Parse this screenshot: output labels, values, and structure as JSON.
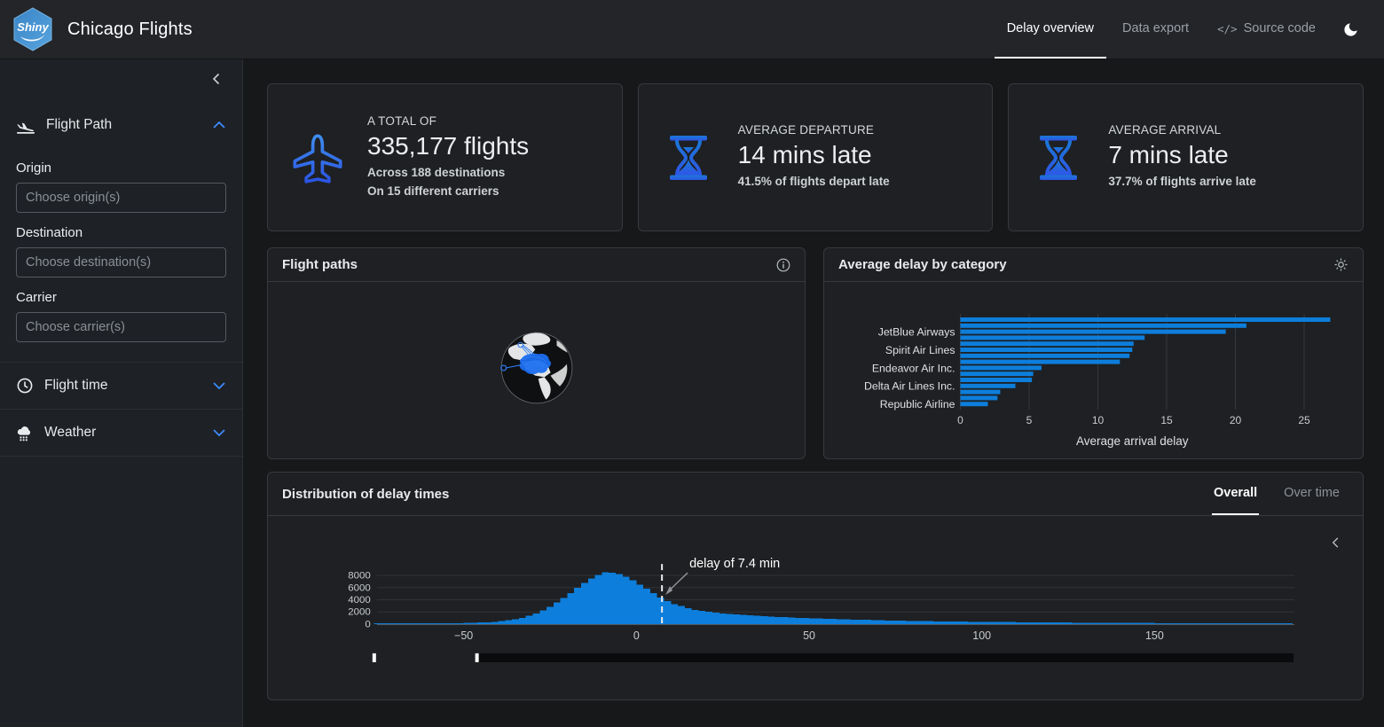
{
  "navbar": {
    "logo_text": "Shiny",
    "brand": "Chicago Flights",
    "tabs": [
      {
        "label": "Delay overview",
        "active": true
      },
      {
        "label": "Data export",
        "active": false
      },
      {
        "label": "Source code",
        "active": false,
        "icon": "code-icon",
        "icon_glyph": "</>"
      }
    ]
  },
  "sidebar": {
    "sections": [
      {
        "title": "Flight Path",
        "icon": "plane-departure-icon",
        "expanded": true,
        "fields": [
          {
            "label": "Origin",
            "placeholder": "Choose origin(s)"
          },
          {
            "label": "Destination",
            "placeholder": "Choose destination(s)"
          },
          {
            "label": "Carrier",
            "placeholder": "Choose carrier(s)"
          }
        ]
      },
      {
        "title": "Flight time",
        "icon": "clock-icon",
        "expanded": false
      },
      {
        "title": "Weather",
        "icon": "cloud-rain-icon",
        "expanded": false
      }
    ]
  },
  "value_boxes": [
    {
      "icon": "plane-icon",
      "title": "A TOTAL OF",
      "value": "335,177 flights",
      "subtitle_lines": [
        "Across 188 destinations",
        "On 15 different carriers"
      ]
    },
    {
      "icon": "hourglass-icon",
      "title": "AVERAGE DEPARTURE",
      "value": "14 mins late",
      "subtitle_lines": [
        "41.5% of flights depart late"
      ]
    },
    {
      "icon": "hourglass-icon",
      "title": "AVERAGE ARRIVAL",
      "value": "7 mins late",
      "subtitle_lines": [
        "37.7% of flights arrive late"
      ]
    }
  ],
  "cards": {
    "flight_paths": {
      "title": "Flight paths",
      "corner_icon": "info-icon"
    },
    "avg_delay": {
      "title": "Average delay by category",
      "corner_icon": "gear-icon"
    },
    "distribution": {
      "title": "Distribution of delay times",
      "tabs": [
        {
          "label": "Overall",
          "active": true
        },
        {
          "label": "Over time",
          "active": false
        }
      ]
    }
  },
  "colors": {
    "chart_blue": "#0d7edb",
    "accent_blue": "#3d8bfd",
    "icon_gradient_top": "#3f8df0",
    "icon_gradient_bottom": "#2b55e2",
    "grid_line": "#303337",
    "tick_text": "#c9ccce",
    "annotation_text": "#ffffff"
  },
  "chart_data": [
    {
      "type": "bar",
      "orientation": "horizontal",
      "title": "Average delay by category",
      "xlabel": "Average arrival delay",
      "xticks": [
        0,
        5,
        10,
        15,
        20,
        25
      ],
      "xlim": [
        0,
        28
      ],
      "grid": true,
      "bar_color": "#0d7edb",
      "values": [
        26.9,
        20.8,
        19.3,
        13.4,
        12.6,
        12.5,
        12.3,
        11.6,
        5.9,
        5.3,
        5.2,
        4.0,
        2.9,
        2.7,
        2.0
      ],
      "ytick_labels": [
        {
          "index": 2,
          "label": "JetBlue Airways"
        },
        {
          "index": 5,
          "label": "Spirit Air Lines"
        },
        {
          "index": 8,
          "label": "Endeavor Air Inc."
        },
        {
          "index": 11,
          "label": "Delta Air Lines Inc."
        },
        {
          "index": 14,
          "label": "Republic Airline"
        }
      ]
    },
    {
      "type": "histogram",
      "title": "Distribution of delay times",
      "color": "#0d7edb",
      "yticks": [
        0,
        2000,
        4000,
        6000,
        8000
      ],
      "xticks": [
        -50,
        0,
        50,
        100,
        150
      ],
      "xlim": [
        -75,
        190
      ],
      "ylim": [
        0,
        8700
      ],
      "annotation": {
        "text": "delay of 7.4 min",
        "x": 7.4
      },
      "bin_start": -76,
      "bin_width": 2,
      "counts": [
        60,
        65,
        70,
        75,
        80,
        85,
        90,
        100,
        110,
        120,
        135,
        150,
        165,
        185,
        215,
        250,
        300,
        380,
        480,
        620,
        800,
        1050,
        1350,
        1750,
        2250,
        2850,
        3550,
        4300,
        5100,
        5950,
        6800,
        7500,
        8100,
        8500,
        8450,
        8200,
        7800,
        7200,
        6500,
        5800,
        5100,
        4400,
        3800,
        3300,
        2950,
        2600,
        2350,
        2150,
        2000,
        1870,
        1760,
        1660,
        1570,
        1490,
        1420,
        1350,
        1290,
        1230,
        1180,
        1130,
        1080,
        1030,
        990,
        950,
        910,
        870,
        840,
        800,
        770,
        740,
        710,
        690,
        660,
        630,
        610,
        580,
        560,
        540,
        520,
        500,
        480,
        460,
        450,
        430,
        420,
        410,
        395,
        380,
        370,
        355,
        345,
        335,
        325,
        315,
        305,
        295,
        285,
        275,
        265,
        255,
        250,
        245,
        235,
        230,
        220,
        215,
        210,
        205,
        200,
        195,
        190,
        185,
        180,
        175,
        170,
        165,
        162,
        158,
        155,
        150,
        148,
        145,
        142,
        140,
        138,
        135,
        132,
        130,
        128,
        125,
        122,
        120,
        118
      ]
    }
  ]
}
